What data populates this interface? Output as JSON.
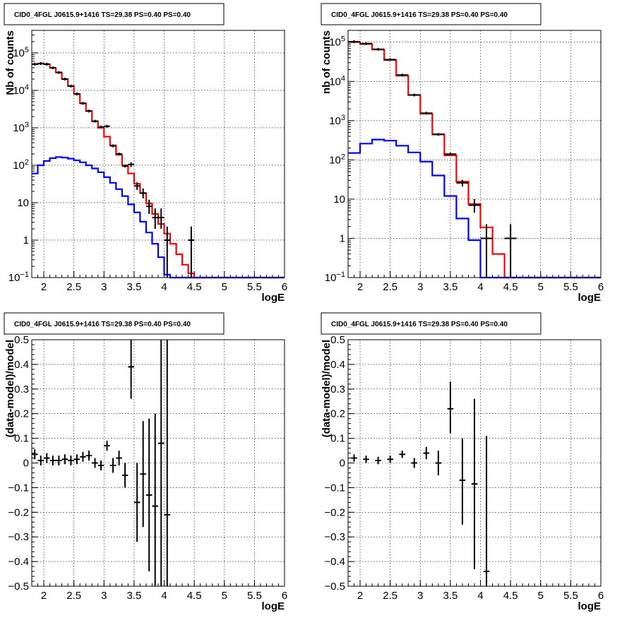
{
  "chart_data": [
    {
      "type": "line",
      "title": "CID0_4FGL J0615.9+1416 TS=29.38 PS=0.40 PS=0.40",
      "xlabel": "logE",
      "ylabel": "Nb of counts",
      "xlim": [
        1.8,
        6.0
      ],
      "ylim": [
        0.1,
        400000
      ],
      "log_y": true,
      "grid": true,
      "x_ticks": [
        "2",
        "2.5",
        "3",
        "3.5",
        "4",
        "4.5",
        "5",
        "5.5",
        "6"
      ],
      "y_ticks": [
        "10^{-1}",
        "1",
        "10",
        "10^{2}",
        "10^{3}",
        "10^{4}",
        "10^{5}"
      ],
      "x_edges": [
        1.8,
        1.9,
        2.0,
        2.1,
        2.2,
        2.3,
        2.4,
        2.5,
        2.6,
        2.7,
        2.8,
        2.9,
        3.0,
        3.1,
        3.2,
        3.3,
        3.4,
        3.5,
        3.6,
        3.7,
        3.8,
        3.9,
        4.0,
        4.1,
        4.2,
        4.3,
        4.4,
        4.5,
        4.6,
        4.7,
        4.8,
        4.9,
        5.0,
        5.1,
        5.2,
        5.3,
        5.4,
        5.5,
        5.6,
        5.7,
        5.8,
        5.9,
        6.0
      ],
      "series": [
        {
          "color": "#ff0000",
          "style": "step",
          "values": [
            50000,
            52000,
            50000,
            40000,
            30000,
            20000,
            13000,
            8000,
            4500,
            2800,
            1500,
            1000,
            580,
            340,
            190,
            100,
            60,
            32,
            18,
            9.5,
            5,
            2.7,
            1.5,
            0.8,
            0.42,
            0.22,
            0.13,
            0.1,
            0.1,
            0.1,
            0.1,
            0.1,
            0.1,
            0.1,
            0.1,
            0.1,
            0.1,
            0.1,
            0.1,
            0.1,
            0.1,
            0.1
          ]
        },
        {
          "color": "#0000ff",
          "style": "step",
          "values": [
            60,
            100,
            130,
            155,
            165,
            160,
            150,
            135,
            120,
            100,
            82,
            65,
            48,
            34,
            23,
            15,
            9,
            5.5,
            3.1,
            1.6,
            0.8,
            0.35,
            0.12,
            0.1,
            0.1,
            0.1,
            0.1,
            0.1,
            0.1,
            0.1,
            0.1,
            0.1,
            0.1,
            0.1,
            0.1,
            0.1,
            0.1,
            0.1,
            0.1,
            0.1,
            0.1,
            0.1
          ]
        }
      ],
      "points": [
        {
          "x": 1.85,
          "y": 50000
        },
        {
          "x": 1.95,
          "y": 52000
        },
        {
          "x": 2.05,
          "y": 50000
        },
        {
          "x": 2.15,
          "y": 40000
        },
        {
          "x": 2.25,
          "y": 30000
        },
        {
          "x": 2.35,
          "y": 20000
        },
        {
          "x": 2.45,
          "y": 13000
        },
        {
          "x": 2.55,
          "y": 8000
        },
        {
          "x": 2.65,
          "y": 4500
        },
        {
          "x": 2.75,
          "y": 2800
        },
        {
          "x": 2.85,
          "y": 1500
        },
        {
          "x": 2.95,
          "y": 1050
        },
        {
          "x": 3.05,
          "y": 1100
        },
        {
          "x": 3.15,
          "y": 330
        },
        {
          "x": 3.25,
          "y": 200
        },
        {
          "x": 3.35,
          "y": 95
        },
        {
          "x": 3.45,
          "y": 105,
          "ylo": 90,
          "yhi": 120
        },
        {
          "x": 3.55,
          "y": 28,
          "ylo": 22,
          "yhi": 35
        },
        {
          "x": 3.65,
          "y": 18,
          "ylo": 13,
          "yhi": 24
        },
        {
          "x": 3.75,
          "y": 8,
          "ylo": 5,
          "yhi": 12
        },
        {
          "x": 3.85,
          "y": 4,
          "ylo": 2,
          "yhi": 7
        },
        {
          "x": 3.95,
          "y": 4,
          "ylo": 2,
          "yhi": 7
        },
        {
          "x": 4.05,
          "y": 1,
          "ylo": 0.1,
          "yhi": 2.3
        },
        {
          "x": 4.45,
          "y": 1,
          "ylo": 0.1,
          "yhi": 2.3
        }
      ]
    },
    {
      "type": "line",
      "title": "CID0_4FGL J0615.9+1416 TS=29.38 PS=0.40 PS=0.40",
      "xlabel": "logE",
      "ylabel": "nb of counts",
      "xlim": [
        1.8,
        6.0
      ],
      "ylim": [
        0.1,
        200000
      ],
      "log_y": true,
      "grid": true,
      "x_ticks": [
        "2",
        "2.5",
        "3",
        "3.5",
        "4",
        "4.5",
        "5",
        "5.5",
        "6"
      ],
      "y_ticks": [
        "10^{-1}",
        "1",
        "10",
        "10^{2}",
        "10^{3}",
        "10^{4}",
        "10^{5}"
      ],
      "x_edges": [
        1.8,
        2.0,
        2.2,
        2.4,
        2.6,
        2.8,
        3.0,
        3.2,
        3.4,
        3.6,
        3.8,
        4.0,
        4.2,
        4.4,
        4.6,
        4.8,
        5.0,
        5.2,
        5.4,
        5.6,
        5.8,
        6.0
      ],
      "series": [
        {
          "color": "#ff0000",
          "style": "step",
          "values": [
            100000,
            90000,
            65000,
            35000,
            14000,
            4500,
            1500,
            450,
            130,
            28,
            7.5,
            1.9,
            0.4,
            0.1,
            0.1,
            0.1,
            0.1,
            0.1,
            0.1,
            0.1,
            0.1
          ]
        },
        {
          "color": "#0000ff",
          "style": "step",
          "values": [
            150,
            260,
            330,
            310,
            230,
            155,
            90,
            40,
            12,
            3.2,
            0.9,
            0.1,
            0.1,
            0.1,
            0.1,
            0.1,
            0.1,
            0.1,
            0.1,
            0.1,
            0.1
          ]
        }
      ],
      "points": [
        {
          "x": 1.9,
          "y": 103000
        },
        {
          "x": 2.1,
          "y": 92000
        },
        {
          "x": 2.3,
          "y": 66000
        },
        {
          "x": 2.5,
          "y": 36000
        },
        {
          "x": 2.7,
          "y": 14500
        },
        {
          "x": 2.9,
          "y": 4500
        },
        {
          "x": 3.1,
          "y": 1550
        },
        {
          "x": 3.3,
          "y": 445
        },
        {
          "x": 3.5,
          "y": 140,
          "ylo": 128,
          "yhi": 152
        },
        {
          "x": 3.7,
          "y": 26,
          "ylo": 21,
          "yhi": 31
        },
        {
          "x": 3.9,
          "y": 7,
          "ylo": 4.5,
          "yhi": 10
        },
        {
          "x": 4.1,
          "y": 1,
          "ylo": 0.1,
          "yhi": 2.3
        },
        {
          "x": 4.5,
          "y": 1,
          "ylo": 0.1,
          "yhi": 2.3
        }
      ]
    },
    {
      "type": "scatter",
      "title": "CID0_4FGL J0615.9+1416 TS=29.38 PS=0.40 PS=0.40",
      "xlabel": "logE",
      "ylabel": "(data-model)/model",
      "xlim": [
        1.8,
        6.0
      ],
      "ylim": [
        -0.5,
        0.5
      ],
      "grid": true,
      "x_ticks": [
        "2",
        "2.5",
        "3",
        "3.5",
        "4",
        "4.5",
        "5",
        "5.5",
        "6"
      ],
      "y_ticks": [
        "-0.5",
        "-0.4",
        "-0.3",
        "-0.2",
        "-0.1",
        "0",
        "0.1",
        "0.2",
        "0.3",
        "0.4",
        "0.5"
      ],
      "points": [
        {
          "x": 1.85,
          "y": 0.035,
          "ylo": 0.015,
          "yhi": 0.055
        },
        {
          "x": 1.95,
          "y": 0.01,
          "ylo": -0.01,
          "yhi": 0.03
        },
        {
          "x": 2.05,
          "y": 0.02,
          "ylo": 0.0,
          "yhi": 0.04
        },
        {
          "x": 2.15,
          "y": 0.01,
          "ylo": -0.01,
          "yhi": 0.03
        },
        {
          "x": 2.25,
          "y": 0.01,
          "ylo": -0.01,
          "yhi": 0.03
        },
        {
          "x": 2.35,
          "y": 0.015,
          "ylo": -0.005,
          "yhi": 0.035
        },
        {
          "x": 2.45,
          "y": 0.01,
          "ylo": -0.01,
          "yhi": 0.03
        },
        {
          "x": 2.55,
          "y": 0.015,
          "ylo": -0.005,
          "yhi": 0.035
        },
        {
          "x": 2.65,
          "y": 0.025,
          "ylo": 0.005,
          "yhi": 0.045
        },
        {
          "x": 2.75,
          "y": 0.03,
          "ylo": 0.01,
          "yhi": 0.05
        },
        {
          "x": 2.85,
          "y": 0.0,
          "ylo": -0.02,
          "yhi": 0.02
        },
        {
          "x": 2.95,
          "y": -0.01,
          "ylo": -0.03,
          "yhi": 0.01
        },
        {
          "x": 3.05,
          "y": 0.07,
          "ylo": 0.05,
          "yhi": 0.09
        },
        {
          "x": 3.15,
          "y": -0.01,
          "ylo": -0.04,
          "yhi": 0.02
        },
        {
          "x": 3.25,
          "y": 0.02,
          "ylo": -0.01,
          "yhi": 0.05
        },
        {
          "x": 3.35,
          "y": -0.05,
          "ylo": -0.1,
          "yhi": 0.0
        },
        {
          "x": 3.45,
          "y": 0.39,
          "ylo": 0.26,
          "yhi": 0.52
        },
        {
          "x": 3.55,
          "y": -0.16,
          "ylo": -0.32,
          "yhi": 0.0
        },
        {
          "x": 3.65,
          "y": -0.045,
          "ylo": -0.26,
          "yhi": 0.17
        },
        {
          "x": 3.75,
          "y": -0.13,
          "ylo": -0.44,
          "yhi": 0.18
        },
        {
          "x": 3.85,
          "y": -0.175,
          "ylo": -0.5,
          "yhi": 0.2
        },
        {
          "x": 3.95,
          "y": 0.08,
          "ylo": -0.5,
          "yhi": 0.52
        },
        {
          "x": 4.05,
          "y": -0.21,
          "ylo": -0.5,
          "yhi": 0.52
        }
      ]
    },
    {
      "type": "scatter",
      "title": "CID0_4FGL J0615.9+1416 TS=29.38 PS=0.40 PS=0.40",
      "xlabel": "logE",
      "ylabel": "(data-model)/model",
      "xlim": [
        1.8,
        6.0
      ],
      "ylim": [
        -0.5,
        0.5
      ],
      "grid": true,
      "x_ticks": [
        "2",
        "2.5",
        "3",
        "3.5",
        "4",
        "4.5",
        "5",
        "5.5",
        "6"
      ],
      "y_ticks": [
        "-0.5",
        "-0.4",
        "-0.3",
        "-0.2",
        "-0.1",
        "0",
        "0.1",
        "0.2",
        "0.3",
        "0.4",
        "0.5"
      ],
      "points": [
        {
          "x": 1.9,
          "y": 0.02,
          "ylo": 0.005,
          "yhi": 0.035
        },
        {
          "x": 2.1,
          "y": 0.015,
          "ylo": 0.0,
          "yhi": 0.03
        },
        {
          "x": 2.3,
          "y": 0.01,
          "ylo": -0.005,
          "yhi": 0.025
        },
        {
          "x": 2.5,
          "y": 0.015,
          "ylo": 0.0,
          "yhi": 0.03
        },
        {
          "x": 2.7,
          "y": 0.035,
          "ylo": 0.02,
          "yhi": 0.05
        },
        {
          "x": 2.9,
          "y": 0.0,
          "ylo": -0.02,
          "yhi": 0.02
        },
        {
          "x": 3.1,
          "y": 0.04,
          "ylo": 0.015,
          "yhi": 0.065
        },
        {
          "x": 3.3,
          "y": 0.0,
          "ylo": -0.05,
          "yhi": 0.05
        },
        {
          "x": 3.5,
          "y": 0.22,
          "ylo": 0.12,
          "yhi": 0.33
        },
        {
          "x": 3.7,
          "y": -0.07,
          "ylo": -0.25,
          "yhi": 0.1
        },
        {
          "x": 3.9,
          "y": -0.085,
          "ylo": -0.43,
          "yhi": 0.26
        },
        {
          "x": 4.1,
          "y": -0.44,
          "ylo": -0.5,
          "yhi": 0.11
        }
      ]
    }
  ]
}
